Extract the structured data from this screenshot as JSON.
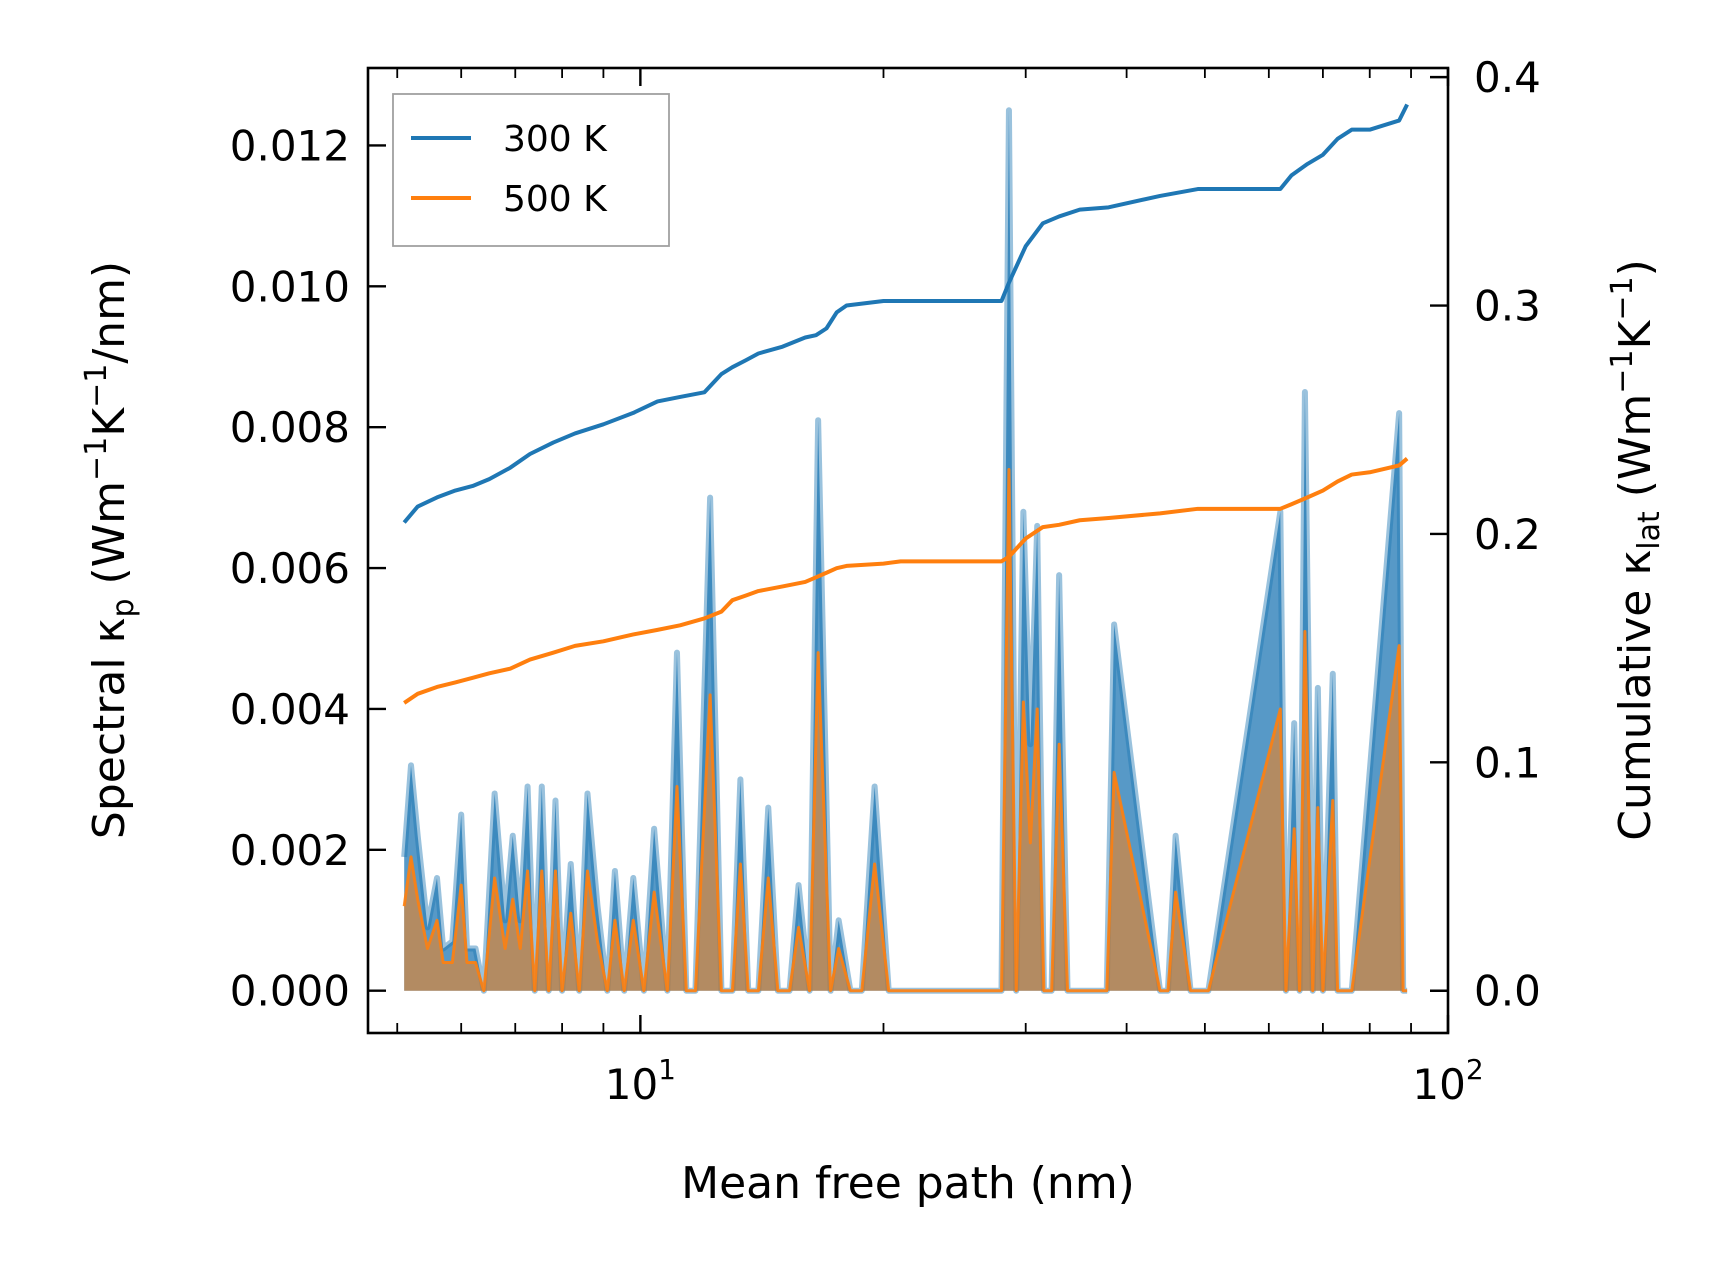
{
  "chart_data": {
    "type": "line",
    "title": "",
    "xlabel": "Mean free path (nm)",
    "ylabel_left": "Spectral κp (Wm⁻¹K⁻¹/nm)",
    "ylabel_right": "Cumulative κlat (Wm⁻¹K⁻¹)",
    "x_scale": "log",
    "xlim": [
      4.6,
      100
    ],
    "ylim_left": [
      -0.0006,
      0.0131
    ],
    "ylim_right": [
      -0.0185,
      0.404
    ],
    "x_ticks": [
      {
        "value": 10,
        "base": "10",
        "exp": "1"
      },
      {
        "value": 100,
        "base": "10",
        "exp": "2"
      }
    ],
    "y_ticks_left": [
      "0.000",
      "0.002",
      "0.004",
      "0.006",
      "0.008",
      "0.010",
      "0.012"
    ],
    "y_ticks_right": [
      "0.0",
      "0.1",
      "0.2",
      "0.3",
      "0.4"
    ],
    "legend": {
      "location": "top-left",
      "entries": [
        {
          "label": "300 K",
          "color": "#1f77b4"
        },
        {
          "label": "500 K",
          "color": "#ff7f0e"
        }
      ]
    },
    "colors": {
      "series_300": "#1f77b4",
      "series_500": "#ff7f0e",
      "fill_300": "#1f77b4",
      "fill_500": "#ff7f0e"
    },
    "spectral": {
      "x": [
        5.1,
        5.2,
        5.3,
        5.45,
        5.6,
        5.7,
        5.85,
        6.0,
        6.1,
        6.25,
        6.4,
        6.6,
        6.8,
        6.95,
        7.1,
        7.25,
        7.4,
        7.55,
        7.7,
        7.85,
        8.0,
        8.2,
        8.4,
        8.6,
        8.85,
        9.1,
        9.3,
        9.55,
        9.8,
        10.1,
        10.4,
        10.8,
        11.1,
        11.4,
        11.7,
        12.2,
        12.6,
        13.0,
        13.3,
        13.6,
        14.0,
        14.4,
        14.8,
        15.3,
        15.7,
        16.2,
        16.6,
        17.2,
        17.6,
        18.2,
        18.8,
        19.5,
        20.3,
        20.8,
        21.3,
        22.0,
        28.0,
        28.6,
        29.2,
        29.8,
        30.4,
        31.0,
        31.6,
        32.3,
        33.0,
        33.8,
        34.4,
        37.0,
        37.8,
        38.6,
        44.0,
        45.0,
        46.0,
        48.0,
        49.0,
        50.5,
        62.0,
        63.0,
        64.5,
        65.5,
        66.5,
        68.0,
        69.0,
        70.0,
        72.0,
        73.0,
        74.0,
        75.0,
        76.0,
        87.0,
        88.0,
        89.0
      ],
      "y_300": [
        0.0019,
        0.0032,
        0.0022,
        0.0009,
        0.0016,
        0.0006,
        0.0007,
        0.0025,
        0.0006,
        0.0006,
        0.0,
        0.0028,
        0.001,
        0.0022,
        0.001,
        0.0029,
        0.0,
        0.0029,
        0.0,
        0.0027,
        0.0,
        0.0018,
        0.0,
        0.0028,
        0.0012,
        0.0,
        0.0017,
        0.0,
        0.0016,
        0.0,
        0.0023,
        0.0,
        0.0048,
        0.0,
        0.0,
        0.007,
        0.0,
        0.0,
        0.003,
        0.0,
        0.0,
        0.0026,
        0.0,
        0.0,
        0.0015,
        0.0,
        0.0081,
        0.0,
        0.001,
        0.0,
        0.0,
        0.0029,
        0.0,
        0.0,
        0.0,
        0.0,
        0.0,
        0.0125,
        0.0,
        0.0068,
        0.0035,
        0.0066,
        0.0,
        0.0,
        0.0059,
        0.0,
        0.0,
        0.0,
        0.0,
        0.0052,
        0.0,
        0.0,
        0.0022,
        0.0,
        0.0,
        0.0,
        0.0068,
        0.0,
        0.0038,
        0.0,
        0.0085,
        0.0,
        0.0043,
        0.0,
        0.0045,
        0.0,
        0.0,
        0.0,
        0.0,
        0.0082,
        0.0,
        0.0
      ],
      "y_500": [
        0.0012,
        0.0019,
        0.0013,
        0.0006,
        0.001,
        0.0004,
        0.0004,
        0.0015,
        0.0004,
        0.0004,
        0.0,
        0.0016,
        0.0006,
        0.0013,
        0.0006,
        0.0017,
        0.0,
        0.0017,
        0.0,
        0.0017,
        0.0,
        0.0011,
        0.0,
        0.0017,
        0.0007,
        0.0,
        0.001,
        0.0,
        0.001,
        0.0,
        0.0014,
        0.0,
        0.0029,
        0.0,
        0.0,
        0.0042,
        0.0,
        0.0,
        0.0018,
        0.0,
        0.0,
        0.0016,
        0.0,
        0.0,
        0.0009,
        0.0,
        0.0048,
        0.0,
        0.0006,
        0.0,
        0.0,
        0.0018,
        0.0,
        0.0,
        0.0,
        0.0,
        0.0,
        0.0074,
        0.0,
        0.0041,
        0.0021,
        0.004,
        0.0,
        0.0,
        0.0035,
        0.0,
        0.0,
        0.0,
        0.0,
        0.0031,
        0.0,
        0.0,
        0.0014,
        0.0,
        0.0,
        0.0,
        0.004,
        0.0,
        0.0023,
        0.0,
        0.0051,
        0.0,
        0.0026,
        0.0,
        0.0027,
        0.0,
        0.0,
        0.0,
        0.0,
        0.0049,
        0.0,
        0.0
      ]
    },
    "cumulative": {
      "x": [
        5.1,
        5.3,
        5.6,
        5.9,
        6.2,
        6.5,
        6.9,
        7.3,
        7.8,
        8.3,
        9.0,
        9.8,
        10.5,
        11.2,
        12.0,
        12.6,
        13.0,
        13.5,
        14.0,
        15.0,
        16.0,
        16.5,
        17.0,
        17.5,
        18.0,
        20.0,
        21.0,
        24.0,
        28.0,
        28.6,
        30.0,
        31.5,
        33.0,
        35.0,
        38.0,
        44.0,
        49.0,
        62.0,
        64.0,
        67.0,
        70.0,
        73.0,
        76.0,
        80.0,
        87.0,
        89.0
      ],
      "y_300": [
        0.205,
        0.212,
        0.216,
        0.219,
        0.221,
        0.224,
        0.229,
        0.235,
        0.24,
        0.244,
        0.248,
        0.253,
        0.258,
        0.26,
        0.262,
        0.27,
        0.273,
        0.276,
        0.279,
        0.282,
        0.286,
        0.287,
        0.29,
        0.297,
        0.3,
        0.302,
        0.302,
        0.302,
        0.302,
        0.31,
        0.326,
        0.336,
        0.339,
        0.342,
        0.343,
        0.348,
        0.351,
        0.351,
        0.357,
        0.362,
        0.366,
        0.373,
        0.377,
        0.377,
        0.381,
        0.388
      ],
      "y_500": [
        0.126,
        0.13,
        0.133,
        0.135,
        0.137,
        0.139,
        0.141,
        0.145,
        0.148,
        0.151,
        0.153,
        0.156,
        0.158,
        0.16,
        0.163,
        0.166,
        0.171,
        0.173,
        0.175,
        0.177,
        0.179,
        0.181,
        0.183,
        0.185,
        0.186,
        0.187,
        0.188,
        0.188,
        0.188,
        0.19,
        0.198,
        0.203,
        0.204,
        0.206,
        0.207,
        0.209,
        0.211,
        0.211,
        0.213,
        0.216,
        0.219,
        0.223,
        0.226,
        0.227,
        0.23,
        0.233
      ]
    }
  }
}
